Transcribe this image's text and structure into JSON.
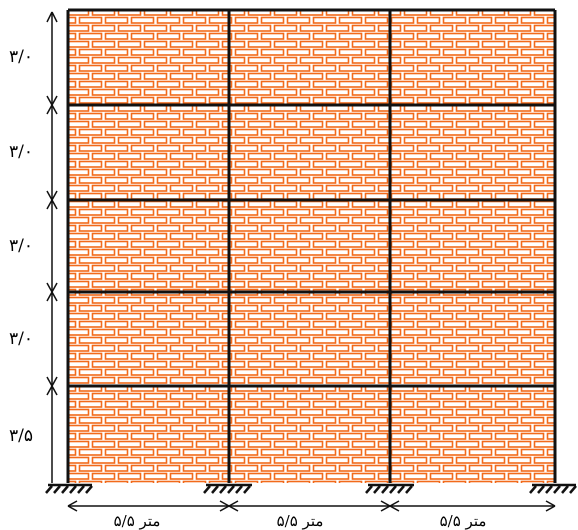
{
  "diagram": {
    "brick_color": "#f26a1b",
    "frame_color": "#111111",
    "story_heights": [
      "۳/۰",
      "۳/۰",
      "۳/۰",
      "۳/۰",
      "۳/۵"
    ],
    "bay_spans": [
      "۵/۵ متر",
      "۵/۵ متر",
      "۵/۵ متر"
    ],
    "support_icon": "fixed-support-icon"
  }
}
